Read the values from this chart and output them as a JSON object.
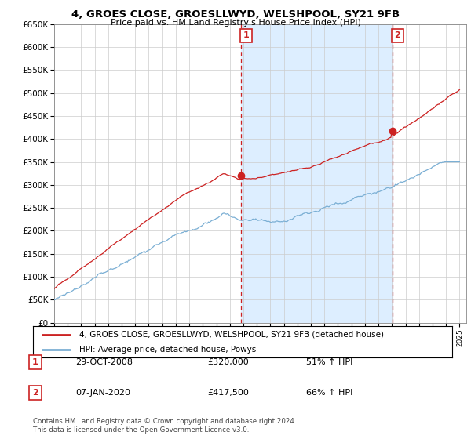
{
  "title": "4, GROES CLOSE, GROESLLWYD, WELSHPOOL, SY21 9FB",
  "subtitle": "Price paid vs. HM Land Registry's House Price Index (HPI)",
  "ylabel_ticks": [
    "£0",
    "£50K",
    "£100K",
    "£150K",
    "£200K",
    "£250K",
    "£300K",
    "£350K",
    "£400K",
    "£450K",
    "£500K",
    "£550K",
    "£600K",
    "£650K"
  ],
  "ylim": [
    0,
    650000
  ],
  "ytick_values": [
    0,
    50000,
    100000,
    150000,
    200000,
    250000,
    300000,
    350000,
    400000,
    450000,
    500000,
    550000,
    600000,
    650000
  ],
  "hpi_color": "#7bafd4",
  "price_color": "#cc2222",
  "shade_color": "#ddeeff",
  "legend_price_label": "4, GROES CLOSE, GROESLLWYD, WELSHPOOL, SY21 9FB (detached house)",
  "legend_hpi_label": "HPI: Average price, detached house, Powys",
  "sale1_year": 2008.83,
  "sale1_price": 320000,
  "sale2_year": 2020.04,
  "sale2_price": 417500,
  "table_rows": [
    [
      "1",
      "29-OCT-2008",
      "£320,000",
      "51% ↑ HPI"
    ],
    [
      "2",
      "07-JAN-2020",
      "£417,500",
      "66% ↑ HPI"
    ]
  ],
  "footer": "Contains HM Land Registry data © Crown copyright and database right 2024.\nThis data is licensed under the Open Government Licence v3.0.",
  "background_color": "#ffffff",
  "grid_color": "#cccccc"
}
